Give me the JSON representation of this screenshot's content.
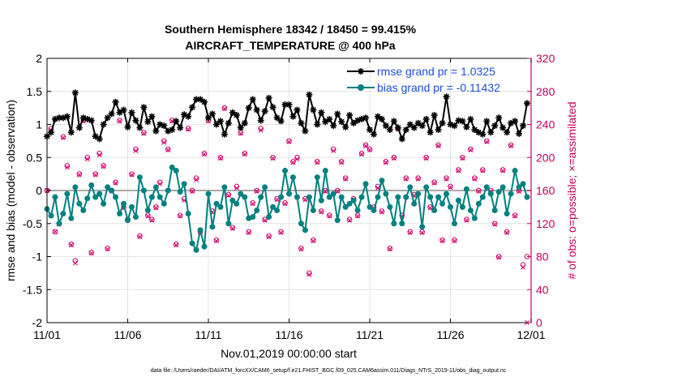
{
  "chart_data": {
    "type": "line",
    "title": "Southern Hemisphere 18342 / 18450 = 99.415%",
    "subtitle": "AIRCRAFT_TEMPERATURE @ 400 hPa",
    "xlabel": "Nov.01,2019 00:00:00 start",
    "ylabel_left": "rmse and bias (model - observation)",
    "ylabel_right": "# of obs: o=possible; ×=assimilated",
    "x_ticks": [
      "11/01",
      "11/06",
      "11/11",
      "11/16",
      "11/21",
      "11/26",
      "12/01"
    ],
    "y_left_ticks": [
      "-2",
      "-1.5",
      "-1",
      "-0.5",
      "0",
      "0.5",
      "1",
      "1.5",
      "2"
    ],
    "y_right_ticks": [
      "0",
      "40",
      "80",
      "120",
      "160",
      "200",
      "240",
      "280",
      "320"
    ],
    "ylim_left": [
      -2,
      2
    ],
    "ylim_right": [
      0,
      320
    ],
    "xlim_days": [
      0,
      30
    ],
    "grid": true,
    "zero_line": true,
    "legend_location": "top-right",
    "colors": {
      "rmse": "#000000",
      "bias": "#008080",
      "obs": "#d4006a",
      "right_axis": "#c8005a",
      "legend_text": "#1a4fd6",
      "zero": "#aaaaaa",
      "grid": "#e4e4e4"
    },
    "series": [
      {
        "name": "rmse grand pr = 1.0325",
        "marker": "star",
        "x": [
          0.0,
          0.25,
          0.5,
          0.75,
          1.0,
          1.25,
          1.5,
          1.75,
          2.0,
          2.25,
          2.5,
          2.75,
          3.0,
          3.25,
          3.5,
          3.75,
          4.0,
          4.25,
          4.5,
          4.75,
          5.0,
          5.25,
          5.5,
          5.75,
          6.0,
          6.25,
          6.5,
          6.75,
          7.0,
          7.25,
          7.5,
          7.75,
          8.0,
          8.25,
          8.5,
          8.75,
          9.0,
          9.25,
          9.5,
          9.75,
          10.0,
          10.25,
          10.5,
          10.75,
          11.0,
          11.25,
          11.5,
          11.75,
          12.0,
          12.25,
          12.5,
          12.75,
          13.0,
          13.25,
          13.5,
          13.75,
          14.0,
          14.25,
          14.5,
          14.75,
          15.0,
          15.25,
          15.5,
          15.75,
          16.0,
          16.25,
          16.5,
          16.75,
          17.0,
          17.25,
          17.5,
          17.75,
          18.0,
          18.25,
          18.5,
          18.75,
          19.0,
          19.25,
          19.5,
          19.75,
          20.0,
          20.25,
          20.5,
          20.75,
          21.0,
          21.25,
          21.5,
          21.75,
          22.0,
          22.25,
          22.5,
          22.75,
          23.0,
          23.25,
          23.5,
          23.75,
          24.0,
          24.25,
          24.5,
          24.75,
          25.0,
          25.25,
          25.5,
          25.75,
          26.0,
          26.25,
          26.5,
          26.75,
          27.0,
          27.25,
          27.5,
          27.75,
          28.0,
          28.25,
          28.5,
          28.75,
          29.0,
          29.25,
          29.5,
          29.75
        ],
        "values": [
          0.82,
          0.88,
          1.08,
          1.1,
          1.1,
          1.12,
          0.88,
          1.48,
          0.95,
          1.1,
          1.08,
          1.06,
          0.82,
          0.78,
          1.0,
          1.1,
          1.16,
          1.34,
          1.18,
          1.22,
          0.96,
          1.18,
          1.06,
          0.95,
          1.26,
          1.04,
          1.12,
          0.9,
          1.0,
          0.98,
          0.9,
          0.92,
          1.05,
          0.95,
          1.15,
          1.12,
          1.26,
          1.38,
          1.38,
          1.34,
          1.1,
          1.16,
          1.0,
          1.05,
          0.85,
          1.02,
          1.18,
          1.14,
          0.95,
          1.02,
          1.25,
          1.38,
          1.22,
          1.06,
          1.2,
          1.4,
          1.26,
          1.1,
          1.05,
          1.3,
          1.3,
          1.12,
          1.22,
          1.02,
          0.9,
          1.45,
          1.22,
          1.0,
          1.18,
          1.04,
          1.08,
          0.98,
          1.16,
          1.04,
          0.96,
          1.14,
          1.02,
          1.06,
          1.08,
          1.1,
          0.92,
          0.85,
          1.12,
          1.08,
          0.98,
          0.92,
          1.05,
          0.95,
          0.78,
          0.92,
          1.0,
          0.95,
          1.02,
          0.98,
          1.08,
          0.88,
          1.14,
          0.92,
          1.02,
          1.42,
          1.0,
          0.98,
          1.06,
          1.05,
          0.96,
          1.08,
          0.92,
          0.88,
          0.85,
          1.05,
          0.88,
          0.98,
          1.1,
          0.95,
          0.88,
          1.02,
          1.05,
          0.86,
          0.98,
          1.32
        ]
      },
      {
        "name": "bias grand pr = -0.11432",
        "marker": "circle",
        "x": [
          0.0,
          0.25,
          0.5,
          0.75,
          1.0,
          1.25,
          1.5,
          1.75,
          2.0,
          2.25,
          2.5,
          2.75,
          3.0,
          3.25,
          3.5,
          3.75,
          4.0,
          4.25,
          4.5,
          4.75,
          5.0,
          5.25,
          5.5,
          5.75,
          6.0,
          6.25,
          6.5,
          6.75,
          7.0,
          7.25,
          7.5,
          7.75,
          8.0,
          8.25,
          8.5,
          8.75,
          9.0,
          9.25,
          9.5,
          9.75,
          10.0,
          10.25,
          10.5,
          10.75,
          11.0,
          11.25,
          11.5,
          11.75,
          12.0,
          12.25,
          12.5,
          12.75,
          13.0,
          13.25,
          13.5,
          13.75,
          14.0,
          14.25,
          14.5,
          14.75,
          15.0,
          15.25,
          15.5,
          15.75,
          16.0,
          16.25,
          16.5,
          16.75,
          17.0,
          17.25,
          17.5,
          17.75,
          18.0,
          18.25,
          18.5,
          18.75,
          19.0,
          19.25,
          19.5,
          19.75,
          20.0,
          20.25,
          20.5,
          20.75,
          21.0,
          21.25,
          21.5,
          21.75,
          22.0,
          22.25,
          22.5,
          22.75,
          23.0,
          23.25,
          23.5,
          23.75,
          24.0,
          24.25,
          24.5,
          24.75,
          25.0,
          25.25,
          25.5,
          25.75,
          26.0,
          26.25,
          26.5,
          26.75,
          27.0,
          27.25,
          27.5,
          27.75,
          28.0,
          28.25,
          28.5,
          28.75,
          29.0,
          29.25,
          29.5,
          29.75
        ],
        "values": [
          -0.28,
          -0.38,
          -0.1,
          -0.5,
          -0.35,
          -0.05,
          -0.42,
          0.05,
          -0.2,
          -0.3,
          -0.12,
          0.08,
          -0.1,
          -0.05,
          -0.2,
          0.05,
          0.0,
          -0.1,
          -0.35,
          -0.2,
          -0.45,
          -0.25,
          -0.4,
          0.2,
          0.0,
          -0.3,
          -0.1,
          0.05,
          -0.1,
          -0.2,
          0.0,
          0.35,
          0.3,
          -0.02,
          0.1,
          -0.35,
          -0.8,
          -0.9,
          -0.6,
          -0.85,
          -0.05,
          -0.55,
          -0.2,
          -0.25,
          0.05,
          -0.5,
          -0.15,
          -0.2,
          -0.05,
          -0.1,
          -0.42,
          -0.4,
          -0.3,
          -0.1,
          0.05,
          -0.4,
          -0.25,
          -0.3,
          -0.1,
          0.3,
          -0.05,
          0.2,
          -0.1,
          -0.5,
          -0.6,
          -0.1,
          -0.3,
          0.2,
          -0.15,
          0.3,
          -0.1,
          -0.05,
          -0.45,
          -0.1,
          -0.25,
          -0.2,
          -0.15,
          -0.3,
          -0.1,
          0.1,
          -0.25,
          -0.3,
          -0.1,
          0.15,
          -0.05,
          -0.25,
          -0.5,
          -0.1,
          -0.5,
          -0.1,
          0.05,
          -0.2,
          -0.05,
          -0.55,
          0.05,
          -0.1,
          -0.3,
          -0.1,
          -0.2,
          -0.05,
          -0.25,
          -0.5,
          -0.15,
          -0.25,
          0.02,
          -0.3,
          -0.42,
          -0.2,
          -0.1,
          0.05,
          -0.05,
          -0.3,
          -0.02,
          0.05,
          -0.35,
          -0.05,
          0.3,
          0.05,
          0.1,
          -0.1
        ]
      },
      {
        "name": "obs possible",
        "axis": "right",
        "marker": "o",
        "x": [
          0.0,
          0.25,
          0.5,
          0.75,
          1.0,
          1.25,
          1.5,
          1.75,
          2.0,
          2.25,
          2.5,
          2.75,
          3.0,
          3.25,
          3.5,
          3.75,
          4.0,
          4.25,
          4.5,
          4.75,
          5.0,
          5.25,
          5.5,
          5.75,
          6.0,
          6.25,
          6.5,
          6.75,
          7.0,
          7.25,
          7.5,
          7.75,
          8.0,
          8.25,
          8.5,
          8.75,
          9.0,
          9.25,
          9.5,
          9.75,
          10.0,
          10.25,
          10.5,
          10.75,
          11.0,
          11.25,
          11.5,
          11.75,
          12.0,
          12.25,
          12.5,
          12.75,
          13.0,
          13.25,
          13.5,
          13.75,
          14.0,
          14.25,
          14.5,
          14.75,
          15.0,
          15.25,
          15.5,
          15.75,
          16.0,
          16.25,
          16.5,
          16.75,
          17.0,
          17.25,
          17.5,
          17.75,
          18.0,
          18.25,
          18.5,
          18.75,
          19.0,
          19.25,
          19.5,
          19.75,
          20.0,
          20.25,
          20.5,
          20.75,
          21.0,
          21.25,
          21.5,
          21.75,
          22.0,
          22.25,
          22.5,
          22.75,
          23.0,
          23.25,
          23.5,
          23.75,
          24.0,
          24.25,
          24.5,
          24.75,
          25.0,
          25.25,
          25.5,
          25.75,
          26.0,
          26.25,
          26.5,
          26.75,
          27.0,
          27.25,
          27.5,
          27.75,
          28.0,
          28.25,
          28.5,
          28.75,
          29.0,
          29.25,
          29.5,
          29.75
        ],
        "values": [
          160,
          235,
          110,
          120,
          225,
          190,
          95,
          75,
          180,
          245,
          200,
          85,
          180,
          205,
          190,
          90,
          160,
          170,
          245,
          140,
          125,
          180,
          210,
          105,
          230,
          130,
          125,
          140,
          170,
          220,
          210,
          245,
          95,
          130,
          150,
          235,
          160,
          175,
          110,
          205,
          245,
          135,
          100,
          200,
          260,
          155,
          115,
          165,
          230,
          205,
          110,
          145,
          160,
          235,
          125,
          105,
          200,
          150,
          110,
          145,
          220,
          195,
          200,
          90,
          150,
          60,
          100,
          195,
          135,
          160,
          130,
          210,
          160,
          195,
          175,
          125,
          150,
          130,
          205,
          215,
          210,
          140,
          165,
          135,
          195,
          90,
          200,
          235,
          130,
          175,
          110,
          155,
          175,
          110,
          200,
          140,
          170,
          215,
          100,
          175,
          165,
          100,
          185,
          200,
          125,
          210,
          175,
          160,
          185,
          220,
          160,
          120,
          80,
          185,
          110,
          215,
          130,
          160,
          70,
          80
        ]
      },
      {
        "name": "obs assimilated",
        "axis": "right",
        "marker": "x",
        "x": [
          0.0,
          0.25,
          0.5,
          0.75,
          1.0,
          1.25,
          1.5,
          1.75,
          2.0,
          2.25,
          2.5,
          2.75,
          3.0,
          3.25,
          3.5,
          3.75,
          4.0,
          4.25,
          4.5,
          4.75,
          5.0,
          5.25,
          5.5,
          5.75,
          6.0,
          6.25,
          6.5,
          6.75,
          7.0,
          7.25,
          7.5,
          7.75,
          8.0,
          8.25,
          8.5,
          8.75,
          9.0,
          9.25,
          9.5,
          9.75,
          10.0,
          10.25,
          10.5,
          10.75,
          11.0,
          11.25,
          11.5,
          11.75,
          12.0,
          12.25,
          12.5,
          12.75,
          13.0,
          13.25,
          13.5,
          13.75,
          14.0,
          14.25,
          14.5,
          14.75,
          15.0,
          15.25,
          15.5,
          15.75,
          16.0,
          16.25,
          16.5,
          16.75,
          17.0,
          17.25,
          17.5,
          17.75,
          18.0,
          18.25,
          18.5,
          18.75,
          19.0,
          19.25,
          19.5,
          19.75,
          20.0,
          20.25,
          20.5,
          20.75,
          21.0,
          21.25,
          21.5,
          21.75,
          22.0,
          22.25,
          22.5,
          22.75,
          23.0,
          23.25,
          23.5,
          23.75,
          24.0,
          24.25,
          24.5,
          24.75,
          25.0,
          25.25,
          25.5,
          25.75,
          26.0,
          26.25,
          26.5,
          26.75,
          27.0,
          27.25,
          27.5,
          27.75,
          28.0,
          28.25,
          28.5,
          28.75,
          29.0,
          29.25,
          29.5,
          29.75
        ],
        "values": [
          160,
          233,
          110,
          119,
          224,
          188,
          94,
          72,
          179,
          244,
          198,
          84,
          179,
          203,
          189,
          89,
          159,
          169,
          244,
          139,
          124,
          179,
          208,
          104,
          229,
          129,
          124,
          139,
          168,
          218,
          209,
          244,
          94,
          129,
          148,
          234,
          159,
          173,
          109,
          204,
          244,
          134,
          99,
          199,
          259,
          154,
          114,
          163,
          229,
          204,
          109,
          144,
          159,
          233,
          124,
          104,
          199,
          149,
          109,
          144,
          219,
          194,
          198,
          89,
          149,
          58,
          99,
          194,
          134,
          159,
          129,
          208,
          159,
          194,
          174,
          124,
          149,
          129,
          204,
          214,
          209,
          139,
          163,
          134,
          194,
          89,
          199,
          234,
          129,
          174,
          109,
          154,
          174,
          109,
          199,
          139,
          169,
          214,
          99,
          174,
          164,
          99,
          184,
          199,
          124,
          209,
          174,
          159,
          184,
          219,
          159,
          119,
          79,
          184,
          109,
          214,
          129,
          159,
          67,
          0
        ]
      }
    ],
    "extra_points_note": "",
    "footer": "data file: /Users/raeder/DAI/ATM_forcXX/CAM6_setup/f.e21.FHIST_BGC.f09_025.CAM6assim.011/Diags_NTrS_2019-11/obs_diag_output.nc"
  }
}
